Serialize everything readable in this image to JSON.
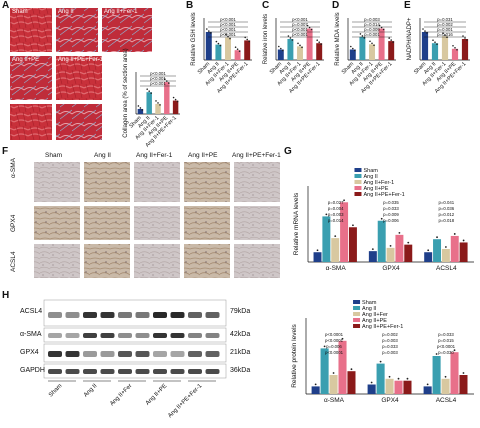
{
  "colors": {
    "sham": "#1f3f8a",
    "ang2": "#3a9fb0",
    "ang2fer": "#d8c8a0",
    "ang2pe": "#e8708a",
    "ang2pefer": "#8b1a1a",
    "tissue_red": "#c8303a",
    "ihc_bg": "#cfc7c8"
  },
  "panel_letters": [
    "A",
    "B",
    "C",
    "D",
    "E",
    "F",
    "G",
    "H"
  ],
  "groups": [
    "Sham",
    "Ang II",
    "Ang II+Fer-1",
    "Ang II+PE",
    "Ang II+PE+Fer-1"
  ],
  "panel_a": {
    "labels": [
      "Sham",
      "Ang II",
      "Ang II+Fer-1",
      "Ang II+PE",
      "Ang II+PE+Fer-1"
    ],
    "ylabel": "Collagen area (% of section area)",
    "pvals": [
      "p<0.001",
      "p<0.001",
      "p<0.001"
    ],
    "xticks": [
      "Sham",
      "Ang II",
      "Ang II+Fer-1",
      "Ang II+PE",
      "Ang II+PE+Fer-1"
    ]
  },
  "panel_b": {
    "ylabel": "Relative GSH levels",
    "pvals": [
      "p<0.001",
      "p<0.001",
      "p<0.001",
      "p<0.001"
    ]
  },
  "panel_c": {
    "ylabel": "Relative iron levels",
    "pvals": [
      "p<0.001",
      "p=0.007",
      "p<0.001",
      "p<0.001"
    ]
  },
  "panel_d": {
    "ylabel": "Relative MDA levels",
    "pvals": [
      "p=0.003",
      "p=0.014",
      "p=0.009",
      "p=0.001"
    ]
  },
  "panel_e": {
    "ylabel": "NADPH/NADP+",
    "pvals": [
      "p=0.031",
      "p=0.002",
      "p=0.001",
      "p=0.016"
    ]
  },
  "panel_f": {
    "cols": [
      "Sham",
      "Ang II",
      "Ang II+Fer-1",
      "Ang II+PE",
      "Ang II+PE+Fer-1"
    ],
    "rows": [
      "α-SMA",
      "GPX4",
      "ACSL4"
    ],
    "scale": "10μm"
  },
  "panel_g": {
    "ylabel": "Relative mRNA levels",
    "legend": [
      "Sham",
      "Ang II",
      "Ang II+Fer-1",
      "Ang II+PE",
      "Ang II+PE+Fer-1"
    ],
    "categories": [
      "α-SMA",
      "GPX4",
      "ACSL4"
    ],
    "pvals": [
      "p=0.027",
      "p=0.004",
      "p=0.003",
      "p=0.014",
      "p=0.035",
      "p=0.033",
      "p=0.009",
      "p=0.006",
      "p=0.041",
      "p=0.036",
      "p=0.012",
      "p=0.018"
    ]
  },
  "panel_h_blot": {
    "proteins": [
      "ACSL4",
      "α-SMA",
      "GPX4",
      "GAPDH"
    ],
    "kda": [
      "79kDa",
      "42kDa",
      "21kDa",
      "36kDa"
    ],
    "lanes": [
      "Sham",
      "Ang II",
      "Ang II+Fer",
      "Ang II+PE",
      "Ang II+PE+Fer-1"
    ]
  },
  "panel_h_chart": {
    "ylabel": "Relative protein levels",
    "legend": [
      "Sham",
      "Ang II",
      "Ang II+Fer",
      "Ang II+PE",
      "Ang II+PE+Fer-1"
    ],
    "categories": [
      "α-SMA",
      "GPX4",
      "ACSL4"
    ],
    "pvals": [
      "p<0.0001",
      "p<0.0001",
      "p=0.006",
      "p<0.0001",
      "p=0.002",
      "p=0.003",
      "p=0.033",
      "p=0.003",
      "p=0.033",
      "p=0.015",
      "p<0.0001",
      "p=0.030"
    ]
  },
  "chart_data": [
    {
      "type": "bar",
      "title": "",
      "ylabel": "Collagen area (% of section area)",
      "categories": [
        "Sham",
        "Ang II",
        "Ang II+Fer-1",
        "Ang II+PE",
        "Ang II+PE+Fer-1"
      ],
      "values": [
        3,
        13,
        6,
        19,
        8
      ],
      "ylim": [
        0,
        25
      ]
    },
    {
      "type": "bar",
      "title": "",
      "ylabel": "Relative GSH levels",
      "categories": [
        "Sham",
        "Ang II",
        "Ang II+Fer-1",
        "Ang II+PE",
        "Ang II+PE+Fer-1"
      ],
      "values": [
        1.0,
        0.55,
        0.8,
        0.35,
        0.7
      ],
      "ylim": [
        0,
        1.5
      ]
    },
    {
      "type": "bar",
      "title": "",
      "ylabel": "Relative iron levels",
      "categories": [
        "Sham",
        "Ang II",
        "Ang II+Fer-1",
        "Ang II+PE",
        "Ang II+PE+Fer-1"
      ],
      "values": [
        1.0,
        2.0,
        1.3,
        3.0,
        1.6
      ],
      "ylim": [
        0,
        4
      ]
    },
    {
      "type": "bar",
      "title": "",
      "ylabel": "Relative MDA levels",
      "categories": [
        "Sham",
        "Ang II",
        "Ang II+Fer-1",
        "Ang II+PE",
        "Ang II+PE+Fer-1"
      ],
      "values": [
        1.0,
        2.2,
        1.5,
        3.0,
        1.8
      ],
      "ylim": [
        0,
        4
      ]
    },
    {
      "type": "bar",
      "title": "",
      "ylabel": "NADPH/NADP+",
      "categories": [
        "Sham",
        "Ang II",
        "Ang II+Fer-1",
        "Ang II+PE",
        "Ang II+PE+Fer-1"
      ],
      "values": [
        1.0,
        0.6,
        0.85,
        0.4,
        0.75
      ],
      "ylim": [
        0,
        1.5
      ]
    },
    {
      "type": "bar",
      "title": "",
      "ylabel": "Relative mRNA levels",
      "categories": [
        "α-SMA",
        "GPX4",
        "ACSL4"
      ],
      "series": [
        {
          "name": "Sham",
          "values": [
            0.9,
            1.0,
            0.9
          ]
        },
        {
          "name": "Ang II",
          "values": [
            4.2,
            3.8,
            2.1
          ]
        },
        {
          "name": "Ang II+Fer-1",
          "values": [
            2.2,
            1.3,
            1.2
          ]
        },
        {
          "name": "Ang II+PE",
          "values": [
            5.5,
            2.5,
            2.4
          ]
        },
        {
          "name": "Ang II+PE+Fer-1",
          "values": [
            3.2,
            1.6,
            1.8
          ]
        }
      ],
      "ylim": [
        0,
        7
      ]
    },
    {
      "type": "bar",
      "title": "",
      "ylabel": "Relative protein levels",
      "categories": [
        "α-SMA",
        "GPX4",
        "ACSL4"
      ],
      "series": [
        {
          "name": "Sham",
          "values": [
            0.2,
            0.25,
            0.2
          ]
        },
        {
          "name": "Ang II",
          "values": [
            1.2,
            0.8,
            1.0
          ]
        },
        {
          "name": "Ang II+Fer",
          "values": [
            0.5,
            0.4,
            0.4
          ]
        },
        {
          "name": "Ang II+PE",
          "values": [
            1.4,
            0.35,
            1.1
          ]
        },
        {
          "name": "Ang II+PE+Fer-1",
          "values": [
            0.6,
            0.35,
            0.5
          ]
        }
      ],
      "ylim": [
        0,
        2
      ]
    }
  ]
}
